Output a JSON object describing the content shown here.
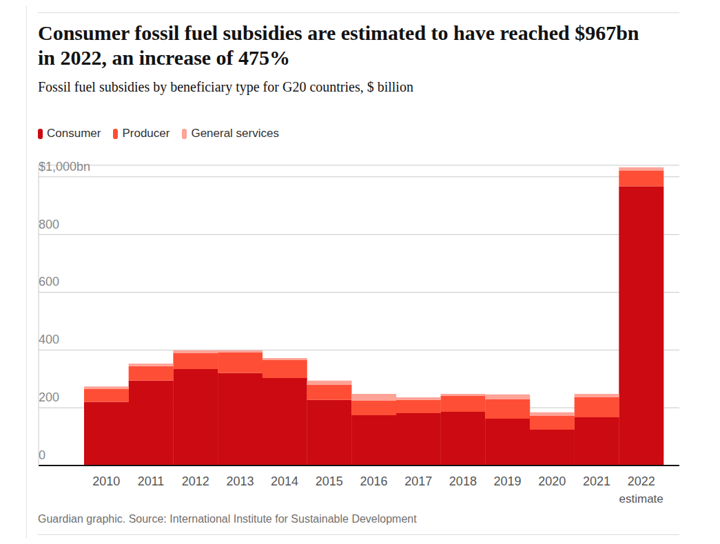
{
  "chart_data": {
    "type": "bar",
    "title": "Consumer fossil fuel subsidies are estimated to have reached $967bn in 2022, an increase of 475%",
    "subtitle": "Fossil fuel subsidies by beneficiary type for G20 countries, $ billion",
    "source": "Guardian graphic. Source: International Institute for Sustainable Development",
    "categories": [
      "2010",
      "2011",
      "2012",
      "2013",
      "2014",
      "2015",
      "2016",
      "2017",
      "2018",
      "2019",
      "2020",
      "2021",
      "2022"
    ],
    "annotations": [
      {
        "text": "estimate",
        "x": "2022"
      }
    ],
    "stacked": true,
    "grid": true,
    "legend": "top-left",
    "series": [
      {
        "name": "Consumer",
        "color": "#cc0a11",
        "values": [
          220,
          294,
          334,
          320,
          303,
          227,
          174,
          181,
          186,
          162,
          124,
          167,
          967
        ]
      },
      {
        "name": "Producer",
        "color": "#ff4e36",
        "values": [
          45,
          50,
          55,
          71,
          62,
          52,
          50,
          46,
          55,
          67,
          48,
          69,
          54
        ]
      },
      {
        "name": "General services",
        "color": "#ffa397",
        "values": [
          9,
          9,
          10,
          8,
          7,
          15,
          24,
          9,
          7,
          17,
          12,
          12,
          12
        ]
      }
    ],
    "ylim": [
      0,
      1040
    ],
    "yticks": [
      0,
      200,
      400,
      600,
      800,
      {
        "value": 1000,
        "label": "$1,000bn"
      }
    ]
  }
}
